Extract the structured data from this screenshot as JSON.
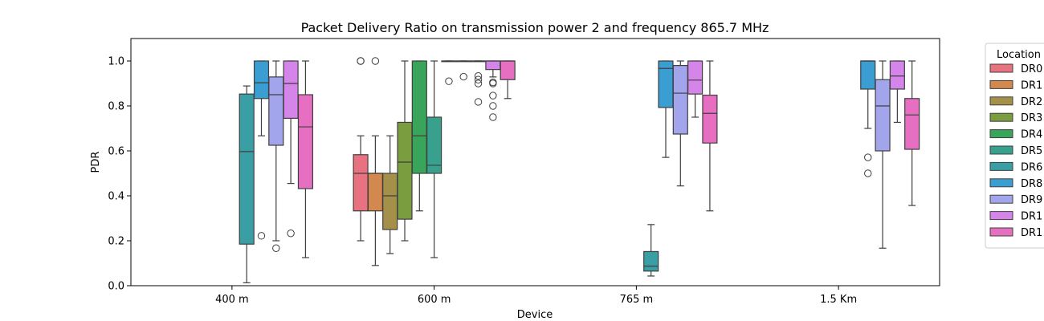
{
  "chart_data": {
    "type": "box",
    "title": "Packet Delivery Ratio on transmission power 2 and frequency 865.7 MHz",
    "xlabel": "Device",
    "ylabel": "PDR",
    "ylim": [
      0,
      1.1
    ],
    "yticks": [
      "0.0",
      "0.2",
      "0.4",
      "0.6",
      "0.8",
      "1.0"
    ],
    "categories": [
      "400 m",
      "600 m",
      "765 m",
      "1.5 Km"
    ],
    "legend": {
      "title": "Location",
      "placement": "outside-right",
      "entries": [
        "DR0",
        "DR1",
        "DR2",
        "DR3",
        "DR4",
        "DR5",
        "DR6",
        "DR8",
        "DR9",
        "DR1",
        "DR1"
      ]
    },
    "series": [
      {
        "name": "DR0",
        "color": "#e8727f",
        "boxes": {
          "600 m": {
            "whislo": 0.2,
            "q1": 0.333,
            "med": 0.5,
            "q3": 0.583,
            "whishi": 0.667,
            "fliers": [
              1.0,
              1.0
            ]
          }
        }
      },
      {
        "name": "DR1",
        "color": "#d2884e",
        "boxes": {
          "600 m": {
            "whislo": 0.09,
            "q1": 0.333,
            "med": 0.5,
            "q3": 0.5,
            "whishi": 0.667,
            "fliers": [
              1.0
            ]
          }
        }
      },
      {
        "name": "DR2",
        "color": "#a59049",
        "boxes": {
          "600 m": {
            "whislo": 0.143,
            "q1": 0.25,
            "med": 0.4,
            "q3": 0.5,
            "whishi": 0.667,
            "fliers": []
          }
        }
      },
      {
        "name": "DR3",
        "color": "#7a9d3f",
        "boxes": {
          "600 m": {
            "whislo": 0.2,
            "q1": 0.296,
            "med": 0.55,
            "q3": 0.727,
            "whishi": 1.0,
            "fliers": []
          }
        }
      },
      {
        "name": "DR4",
        "color": "#39a55b",
        "boxes": {
          "600 m": {
            "whislo": 0.333,
            "q1": 0.5,
            "med": 0.667,
            "q3": 1.0,
            "whishi": 1.0,
            "fliers": []
          }
        }
      },
      {
        "name": "DR5",
        "color": "#37a18e",
        "boxes": {
          "600 m": {
            "whislo": 0.125,
            "q1": 0.5,
            "med": 0.536,
            "q3": 0.75,
            "whishi": 1.0,
            "fliers": []
          }
        }
      },
      {
        "name": "DR6",
        "color": "#3a9ea5",
        "boxes": {
          "400 m": {
            "whislo": 0.013,
            "q1": 0.185,
            "med": 0.597,
            "q3": 0.853,
            "whishi": 0.889,
            "fliers": []
          },
          "600 m": {
            "whislo": 1.0,
            "q1": 1.0,
            "med": 1.0,
            "q3": 1.0,
            "whishi": 1.0,
            "fliers": [
              0.91
            ]
          },
          "765 m": {
            "whislo": 0.043,
            "q1": 0.065,
            "med": 0.087,
            "q3": 0.152,
            "whishi": 0.272,
            "fliers": []
          }
        }
      },
      {
        "name": "DR8",
        "color": "#3b9ed2",
        "boxes": {
          "400 m": {
            "whislo": 0.667,
            "q1": 0.833,
            "med": 0.903,
            "q3": 1.0,
            "whishi": 1.0,
            "fliers": [
              0.222
            ]
          },
          "600 m": {
            "whislo": 1.0,
            "q1": 1.0,
            "med": 1.0,
            "q3": 1.0,
            "whishi": 1.0,
            "fliers": [
              0.93
            ]
          },
          "765 m": {
            "whislo": 0.571,
            "q1": 0.793,
            "med": 0.967,
            "q3": 1.0,
            "whishi": 1.0,
            "fliers": []
          },
          "1.5 Km": {
            "whislo": 0.7,
            "q1": 0.875,
            "med": 1.0,
            "q3": 1.0,
            "whishi": 1.0,
            "fliers": [
              0.571,
              0.5
            ]
          }
        }
      },
      {
        "name": "DR9",
        "color": "#a2a4ec",
        "boxes": {
          "400 m": {
            "whislo": 0.2,
            "q1": 0.625,
            "med": 0.85,
            "q3": 0.929,
            "whishi": 1.0,
            "fliers": [
              0.167
            ]
          },
          "600 m": {
            "whislo": 1.0,
            "q1": 1.0,
            "med": 1.0,
            "q3": 1.0,
            "whishi": 1.0,
            "fliers": [
              0.933,
              0.917,
              0.9,
              0.818
            ]
          },
          "765 m": {
            "whislo": 0.444,
            "q1": 0.675,
            "med": 0.857,
            "q3": 0.98,
            "whishi": 1.0,
            "fliers": []
          },
          "1.5 Km": {
            "whislo": 0.167,
            "q1": 0.6,
            "med": 0.8,
            "q3": 0.917,
            "whishi": 1.0,
            "fliers": []
          }
        }
      },
      {
        "name": "DR1",
        "color": "#d585ea",
        "boxes": {
          "400 m": {
            "whislo": 0.455,
            "q1": 0.745,
            "med": 0.9,
            "q3": 1.0,
            "whishi": 1.0,
            "fliers": [
              0.233
            ]
          },
          "600 m": {
            "whislo": 0.929,
            "q1": 0.962,
            "med": 1.0,
            "q3": 1.0,
            "whishi": 1.0,
            "fliers": [
              0.905,
              0.9,
              0.846,
              0.8,
              0.75
            ]
          },
          "765 m": {
            "whislo": 0.75,
            "q1": 0.853,
            "med": 0.915,
            "q3": 1.0,
            "whishi": 1.0,
            "fliers": []
          },
          "1.5 Km": {
            "whislo": 0.727,
            "q1": 0.875,
            "med": 0.933,
            "q3": 1.0,
            "whishi": 1.0,
            "fliers": []
          }
        }
      },
      {
        "name": "DR1",
        "color": "#e76fc2",
        "boxes": {
          "400 m": {
            "whislo": 0.125,
            "q1": 0.432,
            "med": 0.707,
            "q3": 0.85,
            "whishi": 1.0,
            "fliers": []
          },
          "600 m": {
            "whislo": 0.833,
            "q1": 0.917,
            "med": 1.0,
            "q3": 1.0,
            "whishi": 1.0,
            "fliers": []
          },
          "765 m": {
            "whislo": 0.333,
            "q1": 0.635,
            "med": 0.767,
            "q3": 0.848,
            "whishi": 1.0,
            "fliers": []
          },
          "1.5 Km": {
            "whislo": 0.357,
            "q1": 0.607,
            "med": 0.76,
            "q3": 0.833,
            "whishi": 1.0,
            "fliers": []
          }
        }
      }
    ]
  }
}
